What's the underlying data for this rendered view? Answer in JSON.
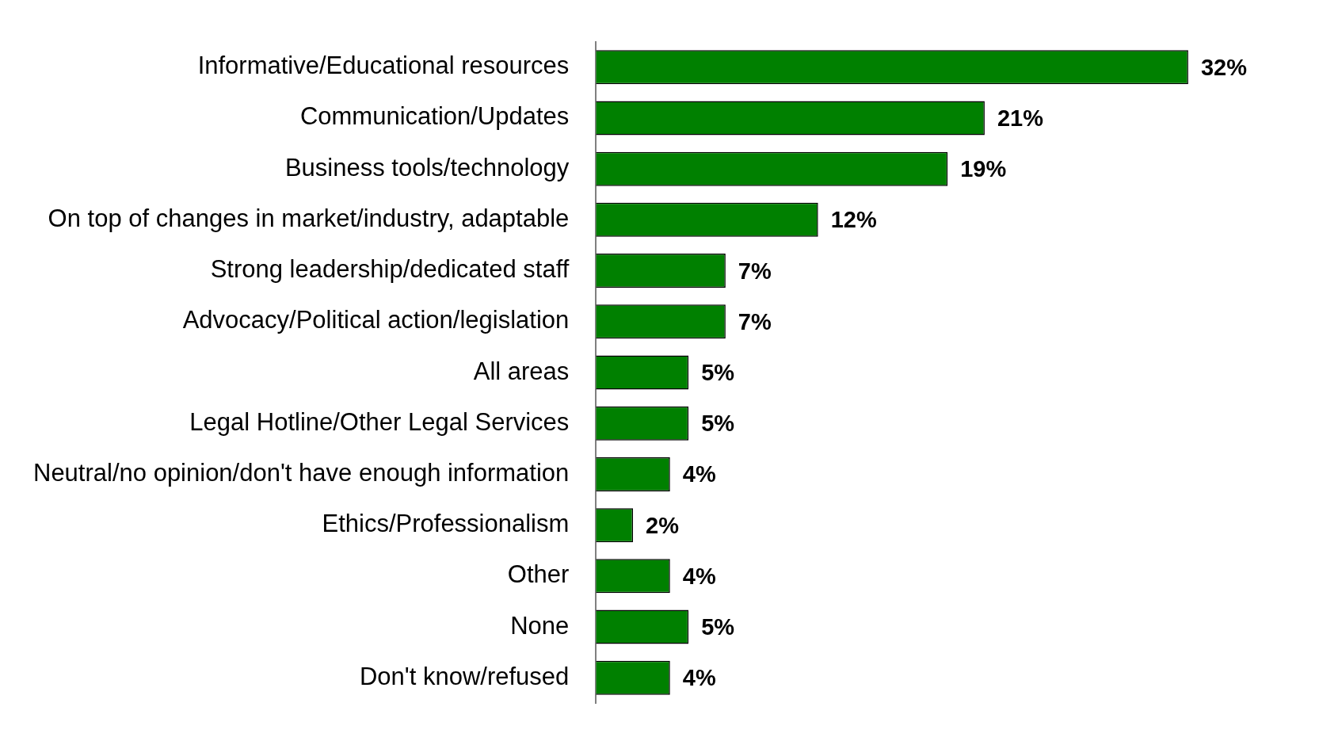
{
  "chart_data": {
    "type": "bar",
    "orientation": "horizontal",
    "legend": false,
    "grid": false,
    "tick_labels": "y",
    "value_labels": [
      "32%",
      "21%",
      "19%",
      "12%",
      "7%",
      "7%",
      "5%",
      "5%",
      "4%",
      "2%",
      "4%",
      "5%",
      "4%"
    ],
    "categories": [
      "Informative/Educational resources",
      "Communication/Updates",
      "Business tools/technology",
      "On top of changes in market/industry, adaptable",
      "Strong leadership/dedicated staff",
      "Advocacy/Political action/legislation",
      "All areas",
      "Legal Hotline/Other Legal Services",
      "Neutral/no opinion/don't have enough information",
      "Ethics/Professionalism",
      "Other",
      "None",
      "Don't know/refused"
    ],
    "values": [
      32,
      21,
      19,
      12,
      7,
      7,
      5,
      5,
      4,
      2,
      4,
      5,
      4
    ],
    "color": "#008000"
  }
}
